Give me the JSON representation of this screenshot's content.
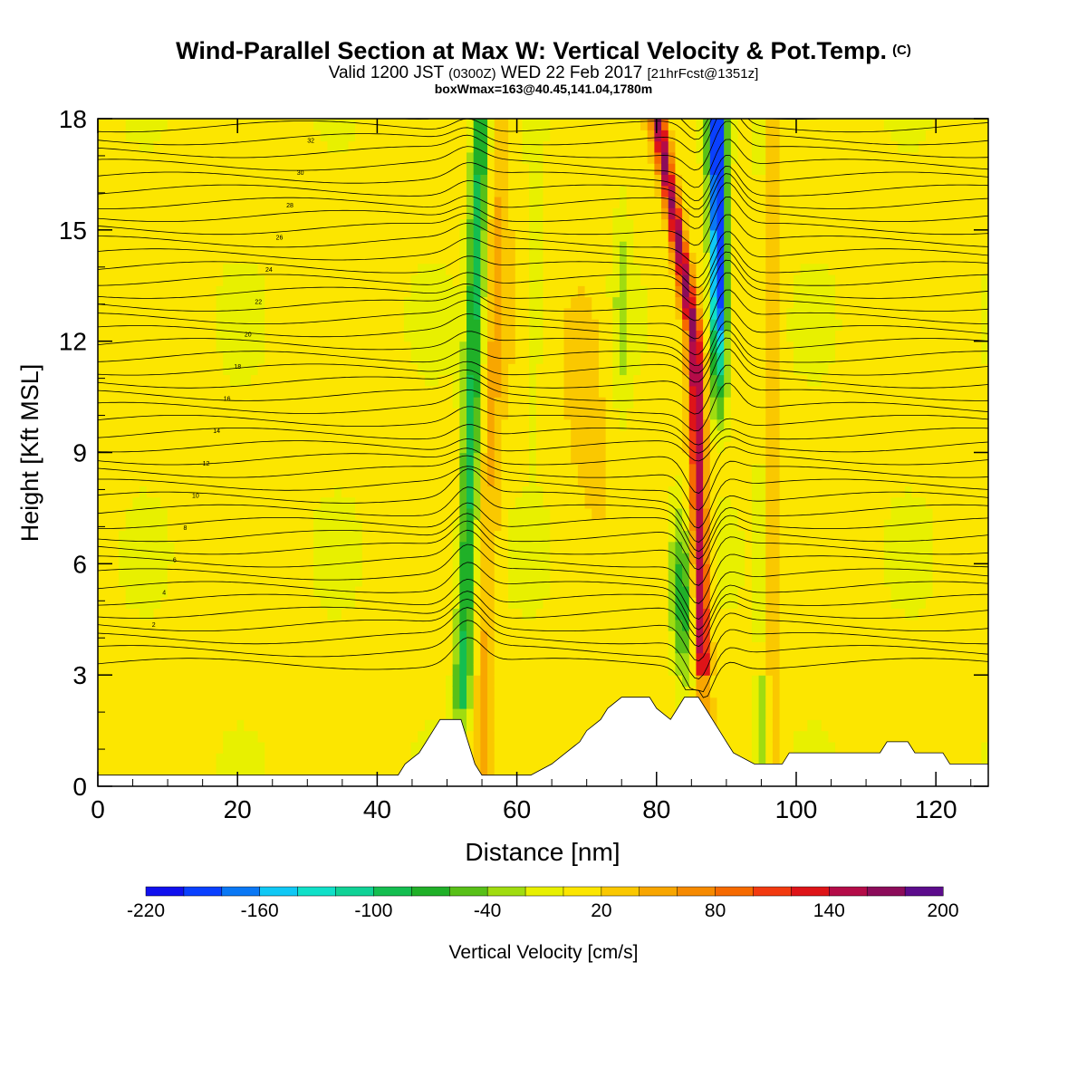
{
  "header": {
    "title": "Wind-Parallel Section at Max W: Vertical Velocity & Pot.Temp.",
    "copyright": "(C)",
    "subtitle_valid": "Valid 1200 JST",
    "subtitle_z": "(0300Z)",
    "subtitle_date": "WED 22 Feb 2017",
    "subtitle_fcst": "[21hrFcst@1351z]",
    "subtitle2": "boxWmax=163@40.45,141.04,1780m"
  },
  "chart_data": {
    "type": "heatmap",
    "xlabel": "Distance [nm]",
    "ylabel": "Height [Kft MSL]",
    "xlim": [
      0,
      127.5
    ],
    "ylim": [
      0,
      18
    ],
    "x_ticks": [
      "0",
      "20",
      "40",
      "60",
      "80",
      "100",
      "120"
    ],
    "y_ticks": [
      "0",
      "3",
      "6",
      "9",
      "12",
      "15",
      "18"
    ],
    "colorbar": {
      "label": "Vertical Velocity [cm/s]",
      "tick_labels": [
        "-220",
        "-160",
        "-100",
        "-40",
        "20",
        "80",
        "140",
        "200"
      ],
      "range": [
        -220,
        200
      ],
      "colors": [
        "#1010ee",
        "#0a40ff",
        "#0a78f5",
        "#10c8f5",
        "#10e0c8",
        "#10d296",
        "#14be50",
        "#20b028",
        "#58c018",
        "#a0dc10",
        "#e8f000",
        "#fce600",
        "#fac800",
        "#f8a600",
        "#f68a00",
        "#f66a00",
        "#f23a10",
        "#de1418",
        "#b40c48",
        "#8c0c5a",
        "#5c0c8c"
      ]
    },
    "topography": [
      [
        0,
        0.3
      ],
      [
        43,
        0.3
      ],
      [
        44,
        0.6
      ],
      [
        46,
        0.9
      ],
      [
        47,
        1.2
      ],
      [
        48,
        1.5
      ],
      [
        49,
        1.8
      ],
      [
        52,
        1.8
      ],
      [
        53,
        1.2
      ],
      [
        54,
        0.6
      ],
      [
        55,
        0.3
      ],
      [
        62,
        0.3
      ],
      [
        65,
        0.6
      ],
      [
        67,
        0.9
      ],
      [
        69,
        1.2
      ],
      [
        70,
        1.5
      ],
      [
        72,
        1.8
      ],
      [
        73,
        2.1
      ],
      [
        75,
        2.4
      ],
      [
        79,
        2.4
      ],
      [
        80,
        2.1
      ],
      [
        82,
        1.8
      ],
      [
        83,
        2.1
      ],
      [
        84,
        2.4
      ],
      [
        86,
        2.4
      ],
      [
        87,
        2.1
      ],
      [
        89,
        1.5
      ],
      [
        90,
        1.2
      ],
      [
        91,
        0.9
      ],
      [
        94,
        0.6
      ],
      [
        98,
        0.6
      ],
      [
        99,
        0.9
      ],
      [
        112,
        0.9
      ],
      [
        113,
        1.2
      ],
      [
        116,
        1.2
      ],
      [
        117,
        0.9
      ],
      [
        121,
        0.9
      ],
      [
        122,
        0.6
      ],
      [
        127.5,
        0.6
      ]
    ],
    "updraft_bands": [
      {
        "x": 56,
        "w_max": 40,
        "kind": "updraft"
      },
      {
        "x": 86.5,
        "w_max": 163,
        "kind": "updraft"
      },
      {
        "x": 82,
        "w_max": 140,
        "kind": "updraft"
      }
    ],
    "downdraft_bands": [
      {
        "x": 52,
        "w_min": -100,
        "kind": "downdraft"
      },
      {
        "x": 89,
        "w_min": -220,
        "kind": "downdraft"
      },
      {
        "x": 84,
        "w_min": -90,
        "kind": "downdraft"
      }
    ],
    "isotherm_labels": [
      "2",
      "4",
      "6",
      "8",
      "10",
      "12",
      "14",
      "16",
      "18",
      "20",
      "22",
      "24",
      "26",
      "28",
      "30",
      "32"
    ]
  }
}
